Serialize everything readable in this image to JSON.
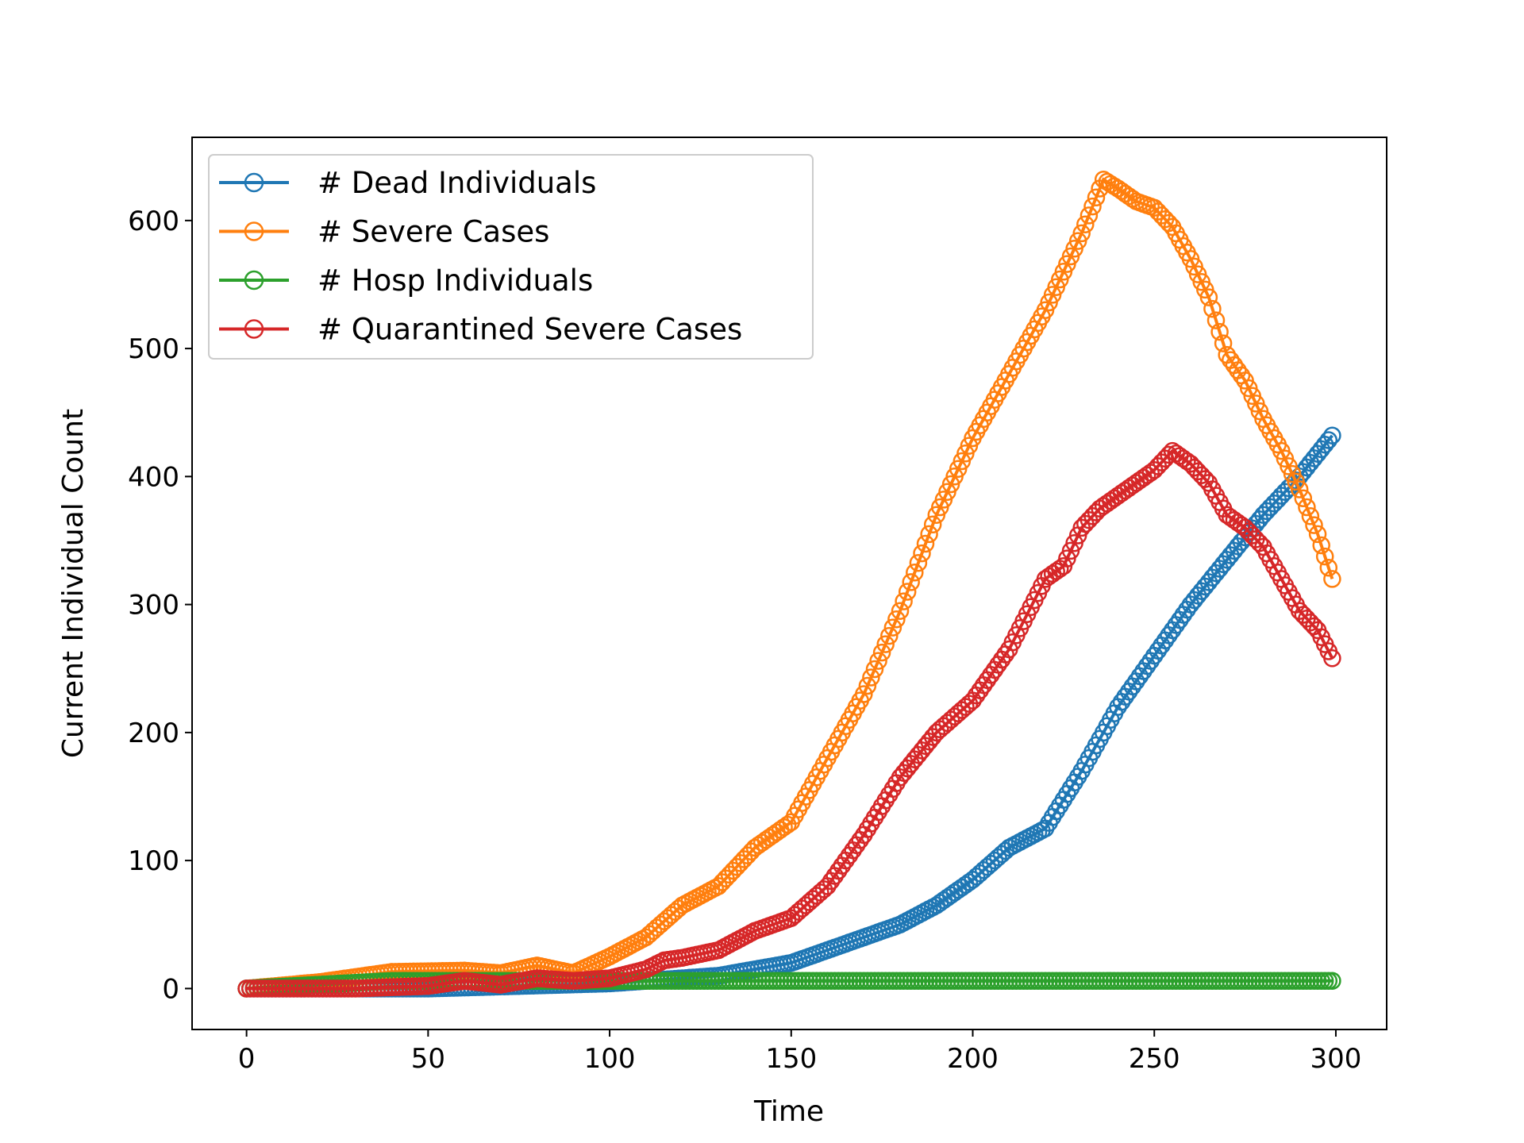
{
  "chart_data": {
    "type": "line",
    "xlabel": "Time",
    "ylabel": "Current Individual Count",
    "xlim": [
      -15,
      314
    ],
    "ylim": [
      -32,
      665
    ],
    "xticks": [
      0,
      50,
      100,
      150,
      200,
      250,
      300
    ],
    "yticks": [
      0,
      100,
      200,
      300,
      400,
      500,
      600
    ],
    "grid": false,
    "legend_position": "top-left",
    "marker": "hollow-circle",
    "series": [
      {
        "name": "# Dead Individuals",
        "color": "#1f77b4",
        "points": [
          [
            0,
            0
          ],
          [
            50,
            0
          ],
          [
            100,
            4
          ],
          [
            130,
            10
          ],
          [
            150,
            20
          ],
          [
            160,
            30
          ],
          [
            170,
            40
          ],
          [
            180,
            50
          ],
          [
            190,
            65
          ],
          [
            200,
            85
          ],
          [
            210,
            110
          ],
          [
            220,
            125
          ],
          [
            230,
            170
          ],
          [
            240,
            220
          ],
          [
            250,
            260
          ],
          [
            260,
            300
          ],
          [
            270,
            335
          ],
          [
            280,
            370
          ],
          [
            290,
            400
          ],
          [
            299,
            432
          ]
        ]
      },
      {
        "name": "# Severe Cases",
        "color": "#ff7f0e",
        "points": [
          [
            0,
            0
          ],
          [
            20,
            5
          ],
          [
            40,
            13
          ],
          [
            60,
            14
          ],
          [
            70,
            12
          ],
          [
            80,
            18
          ],
          [
            90,
            12
          ],
          [
            100,
            25
          ],
          [
            110,
            40
          ],
          [
            120,
            65
          ],
          [
            130,
            80
          ],
          [
            140,
            110
          ],
          [
            150,
            130
          ],
          [
            160,
            180
          ],
          [
            170,
            230
          ],
          [
            180,
            295
          ],
          [
            190,
            370
          ],
          [
            200,
            430
          ],
          [
            210,
            480
          ],
          [
            220,
            530
          ],
          [
            230,
            590
          ],
          [
            236,
            632
          ],
          [
            240,
            625
          ],
          [
            245,
            615
          ],
          [
            250,
            610
          ],
          [
            255,
            595
          ],
          [
            260,
            570
          ],
          [
            265,
            540
          ],
          [
            270,
            495
          ],
          [
            275,
            475
          ],
          [
            280,
            445
          ],
          [
            285,
            420
          ],
          [
            290,
            390
          ],
          [
            295,
            355
          ],
          [
            299,
            320
          ]
        ]
      },
      {
        "name": "# Hosp Individuals",
        "color": "#2ca02c",
        "points": [
          [
            0,
            0
          ],
          [
            20,
            3
          ],
          [
            40,
            6
          ],
          [
            60,
            6
          ],
          [
            100,
            6
          ],
          [
            150,
            6
          ],
          [
            200,
            6
          ],
          [
            250,
            6
          ],
          [
            299,
            6
          ]
        ]
      },
      {
        "name": "# Quarantined Severe Cases",
        "color": "#d62728",
        "points": [
          [
            0,
            0
          ],
          [
            30,
            0
          ],
          [
            50,
            2
          ],
          [
            60,
            6
          ],
          [
            70,
            3
          ],
          [
            80,
            8
          ],
          [
            90,
            6
          ],
          [
            100,
            8
          ],
          [
            110,
            15
          ],
          [
            115,
            22
          ],
          [
            120,
            24
          ],
          [
            130,
            30
          ],
          [
            140,
            45
          ],
          [
            150,
            55
          ],
          [
            160,
            80
          ],
          [
            170,
            120
          ],
          [
            180,
            165
          ],
          [
            190,
            200
          ],
          [
            200,
            225
          ],
          [
            210,
            265
          ],
          [
            220,
            320
          ],
          [
            225,
            330
          ],
          [
            230,
            360
          ],
          [
            235,
            375
          ],
          [
            240,
            385
          ],
          [
            250,
            405
          ],
          [
            255,
            420
          ],
          [
            260,
            410
          ],
          [
            265,
            395
          ],
          [
            270,
            370
          ],
          [
            275,
            360
          ],
          [
            280,
            345
          ],
          [
            285,
            320
          ],
          [
            290,
            295
          ],
          [
            295,
            280
          ],
          [
            299,
            258
          ]
        ]
      }
    ]
  }
}
